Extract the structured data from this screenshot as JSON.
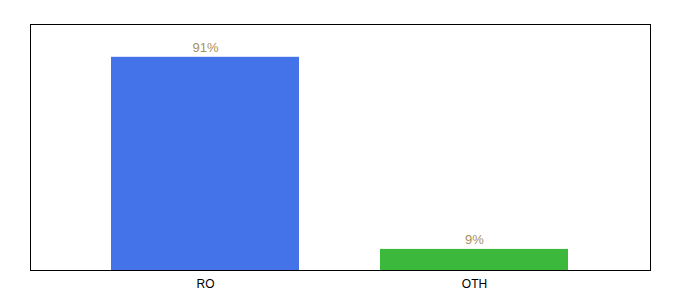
{
  "chart_data": {
    "type": "bar",
    "categories": [
      "RO",
      "OTH"
    ],
    "values": [
      91,
      9
    ],
    "value_labels": [
      "91%",
      "9%"
    ],
    "colors": [
      "#4472e8",
      "#3cb93c"
    ],
    "ylim": [
      0,
      105
    ],
    "data_labels": true,
    "tick_labels": "x",
    "grid": false
  }
}
